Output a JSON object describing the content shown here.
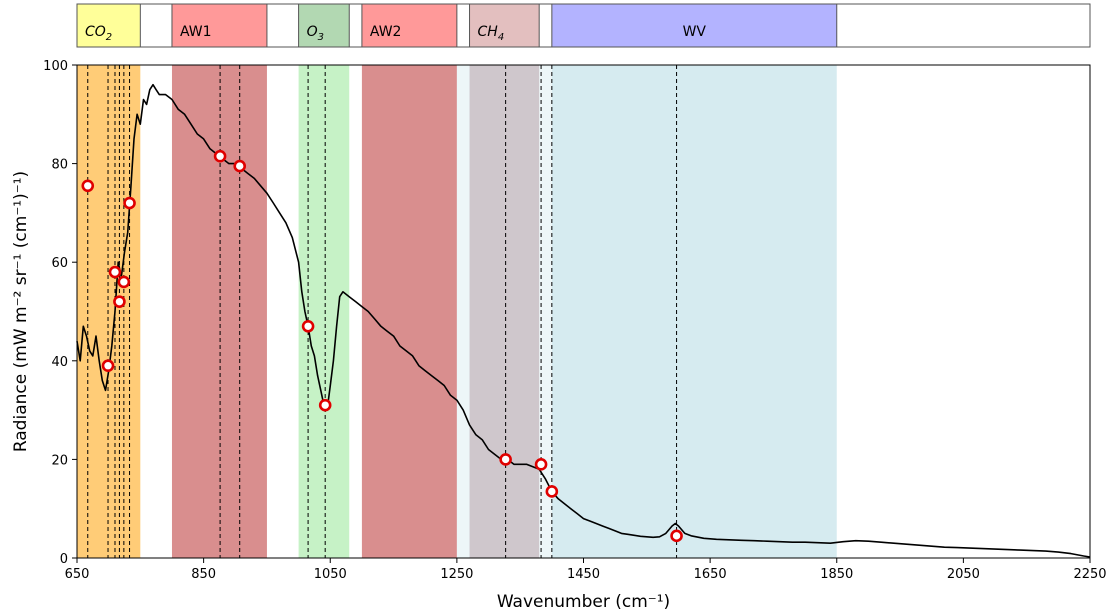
{
  "chart_data": {
    "type": "line",
    "xlabel": "Wavenumber (cm⁻¹)",
    "ylabel": "Radiance (mW m⁻² sr⁻¹ (cm⁻¹)⁻¹)",
    "xlim": [
      650,
      2250
    ],
    "ylim": [
      0,
      100
    ],
    "x_ticks": [
      650,
      850,
      1050,
      1250,
      1450,
      1650,
      1850,
      2050,
      2250
    ],
    "y_ticks": [
      0,
      20,
      40,
      60,
      80,
      100
    ],
    "grid": false,
    "bands": [
      {
        "label": "CO2",
        "sub": "2",
        "x0": 650,
        "x1": 750,
        "color": "#ffcc77",
        "header_color": "#ffff99"
      },
      {
        "label": "AW1",
        "sub": "",
        "x0": 800,
        "x1": 950,
        "color": "#d98e8e",
        "header_color": "#ff9999"
      },
      {
        "label": "O3",
        "sub": "3",
        "x0": 1000,
        "x1": 1080,
        "color": "#c6f2c6",
        "header_color": "#b2d8b2"
      },
      {
        "label": "AW2",
        "sub": "",
        "x0": 1100,
        "x1": 1250,
        "color": "#d98e8e",
        "header_color": "#ff9999"
      },
      {
        "label": "CH4",
        "sub": "4",
        "x0": 1270,
        "x1": 1380,
        "color": "#c8aab0",
        "header_color": "#e3bfbf"
      },
      {
        "label": "WV",
        "sub": "",
        "x0": 1400,
        "x1": 1850,
        "color": "#d6ebf0",
        "header_color": "#b3b3ff"
      }
    ],
    "extra_shading": [
      {
        "x0": 1250,
        "x1": 1400,
        "color": "#d6ebf0"
      }
    ],
    "selected_channels": [
      {
        "x": 667,
        "y": 75.5
      },
      {
        "x": 699,
        "y": 39
      },
      {
        "x": 710,
        "y": 58
      },
      {
        "x": 717,
        "y": 52
      },
      {
        "x": 724,
        "y": 56
      },
      {
        "x": 733,
        "y": 72
      },
      {
        "x": 876,
        "y": 81.5
      },
      {
        "x": 907,
        "y": 79.5
      },
      {
        "x": 1015,
        "y": 47
      },
      {
        "x": 1042,
        "y": 31
      },
      {
        "x": 1327,
        "y": 20
      },
      {
        "x": 1383,
        "y": 19
      },
      {
        "x": 1400,
        "y": 13.5
      },
      {
        "x": 1597,
        "y": 4.5
      }
    ],
    "spectrum": [
      [
        650,
        44
      ],
      [
        655,
        40
      ],
      [
        660,
        47
      ],
      [
        665,
        45
      ],
      [
        670,
        42
      ],
      [
        675,
        41
      ],
      [
        680,
        45
      ],
      [
        685,
        40
      ],
      [
        690,
        36
      ],
      [
        695,
        34
      ],
      [
        700,
        38
      ],
      [
        705,
        43
      ],
      [
        710,
        50
      ],
      [
        715,
        60
      ],
      [
        720,
        57
      ],
      [
        725,
        62
      ],
      [
        730,
        66
      ],
      [
        735,
        75
      ],
      [
        740,
        85
      ],
      [
        745,
        90
      ],
      [
        750,
        88
      ],
      [
        755,
        93
      ],
      [
        760,
        92
      ],
      [
        765,
        95
      ],
      [
        770,
        96
      ],
      [
        775,
        95
      ],
      [
        780,
        94
      ],
      [
        790,
        94
      ],
      [
        800,
        93
      ],
      [
        810,
        91
      ],
      [
        820,
        90
      ],
      [
        830,
        88
      ],
      [
        840,
        86
      ],
      [
        850,
        85
      ],
      [
        860,
        83
      ],
      [
        870,
        82
      ],
      [
        880,
        81
      ],
      [
        890,
        80
      ],
      [
        900,
        80
      ],
      [
        910,
        79
      ],
      [
        920,
        78
      ],
      [
        930,
        77
      ],
      [
        940,
        75.5
      ],
      [
        950,
        74
      ],
      [
        960,
        72
      ],
      [
        970,
        70
      ],
      [
        980,
        68
      ],
      [
        990,
        65
      ],
      [
        1000,
        60
      ],
      [
        1005,
        54
      ],
      [
        1010,
        50
      ],
      [
        1015,
        47
      ],
      [
        1020,
        43
      ],
      [
        1025,
        41
      ],
      [
        1030,
        37
      ],
      [
        1035,
        34
      ],
      [
        1040,
        31
      ],
      [
        1045,
        30
      ],
      [
        1050,
        35
      ],
      [
        1055,
        40
      ],
      [
        1060,
        47
      ],
      [
        1065,
        53
      ],
      [
        1070,
        54
      ],
      [
        1080,
        53
      ],
      [
        1090,
        52
      ],
      [
        1100,
        51
      ],
      [
        1110,
        50
      ],
      [
        1120,
        48.5
      ],
      [
        1130,
        47
      ],
      [
        1140,
        46
      ],
      [
        1150,
        45
      ],
      [
        1160,
        43
      ],
      [
        1170,
        42
      ],
      [
        1180,
        41
      ],
      [
        1190,
        39
      ],
      [
        1200,
        38
      ],
      [
        1210,
        37
      ],
      [
        1220,
        36
      ],
      [
        1230,
        35
      ],
      [
        1240,
        33
      ],
      [
        1250,
        32
      ],
      [
        1260,
        30
      ],
      [
        1270,
        27
      ],
      [
        1280,
        25
      ],
      [
        1290,
        24
      ],
      [
        1300,
        22
      ],
      [
        1310,
        21
      ],
      [
        1320,
        20
      ],
      [
        1330,
        20
      ],
      [
        1340,
        19
      ],
      [
        1350,
        19
      ],
      [
        1360,
        19
      ],
      [
        1370,
        18.5
      ],
      [
        1380,
        18
      ],
      [
        1390,
        16
      ],
      [
        1400,
        13.5
      ],
      [
        1410,
        12
      ],
      [
        1420,
        11
      ],
      [
        1430,
        10
      ],
      [
        1440,
        9
      ],
      [
        1450,
        8
      ],
      [
        1460,
        7.5
      ],
      [
        1470,
        7
      ],
      [
        1480,
        6.5
      ],
      [
        1490,
        6
      ],
      [
        1500,
        5.5
      ],
      [
        1510,
        5
      ],
      [
        1520,
        4.8
      ],
      [
        1530,
        4.6
      ],
      [
        1540,
        4.4
      ],
      [
        1550,
        4.3
      ],
      [
        1560,
        4.2
      ],
      [
        1570,
        4.3
      ],
      [
        1580,
        5
      ],
      [
        1590,
        6.5
      ],
      [
        1595,
        7
      ],
      [
        1600,
        6.5
      ],
      [
        1610,
        5
      ],
      [
        1620,
        4.5
      ],
      [
        1640,
        4
      ],
      [
        1660,
        3.8
      ],
      [
        1680,
        3.7
      ],
      [
        1700,
        3.6
      ],
      [
        1720,
        3.5
      ],
      [
        1740,
        3.4
      ],
      [
        1760,
        3.3
      ],
      [
        1780,
        3.2
      ],
      [
        1800,
        3.2
      ],
      [
        1820,
        3.1
      ],
      [
        1840,
        3
      ],
      [
        1860,
        3.3
      ],
      [
        1880,
        3.5
      ],
      [
        1900,
        3.4
      ],
      [
        1920,
        3.2
      ],
      [
        1940,
        3
      ],
      [
        1960,
        2.8
      ],
      [
        1980,
        2.6
      ],
      [
        2000,
        2.4
      ],
      [
        2020,
        2.2
      ],
      [
        2040,
        2.1
      ],
      [
        2060,
        2
      ],
      [
        2080,
        1.9
      ],
      [
        2100,
        1.8
      ],
      [
        2120,
        1.7
      ],
      [
        2140,
        1.6
      ],
      [
        2160,
        1.5
      ],
      [
        2180,
        1.4
      ],
      [
        2200,
        1.2
      ],
      [
        2220,
        0.9
      ],
      [
        2240,
        0.4
      ],
      [
        2250,
        0.2
      ]
    ]
  }
}
